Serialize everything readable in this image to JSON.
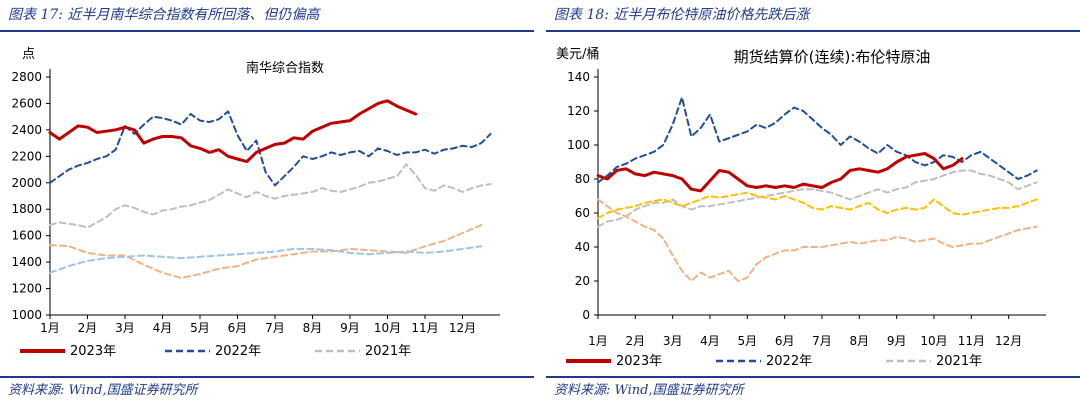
{
  "panels": [
    {
      "title": "图表 17:  近半月南华综合指数有所回落、但仍偏高",
      "source": "资料来源:  Wind,国盛证券研究所"
    },
    {
      "title": "图表 18:  近半月布伦特原油价格先跌后涨",
      "source": "资料来源:  Wind,国盛证券研究所"
    }
  ],
  "colors": {
    "accent": "#1f3a8a"
  },
  "chart_data": [
    {
      "type": "line",
      "title": "南华综合指数",
      "ylabel": "点",
      "xlabel": "",
      "ylim": [
        1000,
        2800
      ],
      "yticks": [
        1000,
        1200,
        1400,
        1600,
        1800,
        2000,
        2200,
        2400,
        2600,
        2800
      ],
      "categories": [
        "1月",
        "2月",
        "3月",
        "4月",
        "5月",
        "6月",
        "7月",
        "8月",
        "9月",
        "10月",
        "11月",
        "12月"
      ],
      "grid": false,
      "legend_position": "bottom",
      "series": [
        {
          "name": "2023年",
          "color": "#c00000",
          "style": "solid",
          "emphasis": true,
          "x": [
            0,
            0.25,
            0.5,
            0.75,
            1,
            1.25,
            1.5,
            1.75,
            2,
            2.25,
            2.5,
            2.75,
            3,
            3.25,
            3.5,
            3.75,
            4,
            4.25,
            4.5,
            4.75,
            5,
            5.25,
            5.5,
            5.75,
            6,
            6.25,
            6.5,
            6.75,
            7,
            7.25,
            7.5,
            7.75,
            8,
            8.25,
            8.5,
            8.75,
            9,
            9.25,
            9.5,
            9.75
          ],
          "values": [
            2380,
            2330,
            2380,
            2430,
            2420,
            2380,
            2390,
            2400,
            2420,
            2400,
            2300,
            2330,
            2350,
            2350,
            2340,
            2280,
            2260,
            2230,
            2250,
            2200,
            2180,
            2160,
            2230,
            2260,
            2290,
            2300,
            2340,
            2330,
            2390,
            2420,
            2450,
            2460,
            2470,
            2520,
            2560,
            2600,
            2620,
            2580,
            2550,
            2520
          ]
        },
        {
          "name": "2022年",
          "color": "#1f4e9c",
          "style": "dashed",
          "x": [
            0,
            0.25,
            0.5,
            0.75,
            1,
            1.25,
            1.5,
            1.75,
            2,
            2.25,
            2.5,
            2.75,
            3,
            3.25,
            3.5,
            3.75,
            4,
            4.25,
            4.5,
            4.75,
            5,
            5.25,
            5.5,
            5.75,
            6,
            6.25,
            6.5,
            6.75,
            7,
            7.25,
            7.5,
            7.75,
            8,
            8.25,
            8.5,
            8.75,
            9,
            9.25,
            9.5,
            9.75,
            10,
            10.25,
            10.5,
            10.75,
            11,
            11.25,
            11.5,
            11.75
          ],
          "values": [
            2000,
            2050,
            2100,
            2130,
            2150,
            2180,
            2200,
            2250,
            2430,
            2370,
            2440,
            2500,
            2490,
            2470,
            2440,
            2520,
            2470,
            2460,
            2480,
            2540,
            2360,
            2240,
            2320,
            2080,
            1980,
            2050,
            2120,
            2200,
            2180,
            2200,
            2230,
            2210,
            2230,
            2240,
            2200,
            2260,
            2240,
            2210,
            2230,
            2230,
            2250,
            2220,
            2250,
            2260,
            2280,
            2270,
            2300,
            2370
          ]
        },
        {
          "name": "2021年",
          "color": "#bfbfbf",
          "style": "dashed",
          "x": [
            0,
            0.25,
            0.5,
            0.75,
            1,
            1.25,
            1.5,
            1.75,
            2,
            2.25,
            2.5,
            2.75,
            3,
            3.25,
            3.5,
            3.75,
            4,
            4.25,
            4.5,
            4.75,
            5,
            5.25,
            5.5,
            5.75,
            6,
            6.25,
            6.5,
            6.75,
            7,
            7.25,
            7.5,
            7.75,
            8,
            8.25,
            8.5,
            8.75,
            9,
            9.25,
            9.5,
            9.75,
            10,
            10.25,
            10.5,
            10.75,
            11,
            11.25,
            11.5,
            11.75
          ],
          "values": [
            1680,
            1700,
            1690,
            1680,
            1660,
            1700,
            1740,
            1800,
            1830,
            1810,
            1780,
            1760,
            1790,
            1800,
            1820,
            1830,
            1850,
            1870,
            1910,
            1950,
            1920,
            1890,
            1930,
            1900,
            1880,
            1900,
            1910,
            1920,
            1930,
            1960,
            1940,
            1930,
            1950,
            1970,
            2000,
            2010,
            2030,
            2050,
            2140,
            2060,
            1960,
            1940,
            1980,
            1960,
            1930,
            1960,
            1980,
            1990
          ]
        },
        {
          "name": "",
          "color": "#f4b183",
          "style": "dashed",
          "x": [
            0,
            0.5,
            1,
            1.5,
            2,
            2.5,
            3,
            3.5,
            4,
            4.5,
            5,
            5.5,
            6,
            6.5,
            7,
            7.5,
            8,
            8.5,
            9,
            9.5,
            10,
            10.5,
            11,
            11.5
          ],
          "values": [
            1530,
            1520,
            1470,
            1450,
            1450,
            1380,
            1320,
            1280,
            1310,
            1350,
            1370,
            1420,
            1440,
            1460,
            1480,
            1480,
            1500,
            1490,
            1480,
            1470,
            1520,
            1560,
            1620,
            1680
          ]
        },
        {
          "name": "",
          "color": "#9dc3e6",
          "style": "dashed",
          "x": [
            0,
            0.5,
            1,
            1.5,
            2,
            2.5,
            3,
            3.5,
            4,
            4.5,
            5,
            5.5,
            6,
            6.5,
            7,
            7.5,
            8,
            8.5,
            9,
            9.5,
            10,
            10.5,
            11,
            11.5
          ],
          "values": [
            1320,
            1370,
            1410,
            1430,
            1440,
            1450,
            1440,
            1430,
            1440,
            1450,
            1460,
            1470,
            1480,
            1500,
            1500,
            1490,
            1470,
            1460,
            1470,
            1480,
            1470,
            1480,
            1500,
            1520
          ]
        }
      ]
    },
    {
      "type": "line",
      "title": "期货结算价(连续):布伦特原油",
      "ylabel": "美元/桶",
      "xlabel": "",
      "ylim": [
        0,
        140
      ],
      "yticks": [
        0,
        20,
        40,
        60,
        80,
        100,
        120,
        140
      ],
      "categories": [
        "1月",
        "2月",
        "3月",
        "4月",
        "5月",
        "6月",
        "7月",
        "8月",
        "9月",
        "10月",
        "11月",
        "12月"
      ],
      "grid": false,
      "legend_position": "bottom",
      "series": [
        {
          "name": "2023年",
          "color": "#c00000",
          "style": "solid",
          "emphasis": true,
          "x": [
            0,
            0.25,
            0.5,
            0.75,
            1,
            1.25,
            1.5,
            1.75,
            2,
            2.25,
            2.5,
            2.75,
            3,
            3.25,
            3.5,
            3.75,
            4,
            4.25,
            4.5,
            4.75,
            5,
            5.25,
            5.5,
            5.75,
            6,
            6.25,
            6.5,
            6.75,
            7,
            7.25,
            7.5,
            7.75,
            8,
            8.25,
            8.5,
            8.75,
            9,
            9.25,
            9.5,
            9.75
          ],
          "values": [
            82,
            80,
            85,
            86,
            83,
            82,
            84,
            83,
            82,
            80,
            74,
            73,
            79,
            85,
            84,
            80,
            76,
            75,
            76,
            75,
            76,
            75,
            77,
            76,
            75,
            78,
            80,
            85,
            86,
            85,
            84,
            86,
            90,
            93,
            94,
            95,
            92,
            86,
            88,
            92
          ]
        },
        {
          "name": "2022年",
          "color": "#1f4e9c",
          "style": "dashed",
          "x": [
            0,
            0.25,
            0.5,
            0.75,
            1,
            1.25,
            1.5,
            1.75,
            2,
            2.25,
            2.5,
            2.75,
            3,
            3.25,
            3.5,
            3.75,
            4,
            4.25,
            4.5,
            4.75,
            5,
            5.25,
            5.5,
            5.75,
            6,
            6.25,
            6.5,
            6.75,
            7,
            7.25,
            7.5,
            7.75,
            8,
            8.25,
            8.5,
            8.75,
            9,
            9.25,
            9.5,
            9.75,
            10,
            10.25,
            10.5,
            10.75,
            11,
            11.25,
            11.5,
            11.75
          ],
          "values": [
            78,
            82,
            87,
            89,
            92,
            94,
            96,
            100,
            112,
            128,
            105,
            110,
            118,
            102,
            104,
            106,
            108,
            112,
            110,
            113,
            118,
            122,
            120,
            115,
            110,
            106,
            100,
            105,
            102,
            98,
            95,
            100,
            96,
            94,
            90,
            88,
            90,
            94,
            93,
            90,
            94,
            96,
            92,
            88,
            84,
            80,
            82,
            85
          ]
        },
        {
          "name": "2021年",
          "color": "#bfbfbf",
          "style": "dashed",
          "x": [
            0,
            0.25,
            0.5,
            0.75,
            1,
            1.25,
            1.5,
            1.75,
            2,
            2.25,
            2.5,
            2.75,
            3,
            3.25,
            3.5,
            3.75,
            4,
            4.25,
            4.5,
            4.75,
            5,
            5.25,
            5.5,
            5.75,
            6,
            6.25,
            6.5,
            6.75,
            7,
            7.25,
            7.5,
            7.75,
            8,
            8.25,
            8.5,
            8.75,
            9,
            9.25,
            9.5,
            9.75,
            10,
            10.25,
            10.5,
            10.75,
            11,
            11.25,
            11.5,
            11.75
          ],
          "values": [
            52,
            55,
            56,
            58,
            62,
            64,
            66,
            66,
            68,
            64,
            62,
            64,
            64,
            65,
            66,
            67,
            68,
            69,
            70,
            71,
            72,
            73,
            74,
            74,
            73,
            72,
            70,
            68,
            70,
            72,
            74,
            72,
            74,
            75,
            78,
            79,
            80,
            82,
            84,
            85,
            85,
            83,
            82,
            80,
            78,
            74,
            76,
            78
          ]
        },
        {
          "name": "",
          "color": "#ffc000",
          "style": "dashed",
          "x": [
            0,
            0.25,
            0.5,
            0.75,
            1,
            1.25,
            1.5,
            1.75,
            2,
            2.25,
            2.5,
            2.75,
            3,
            3.25,
            3.5,
            3.75,
            4,
            4.25,
            4.5,
            4.75,
            5,
            5.25,
            5.5,
            5.75,
            6,
            6.25,
            6.5,
            6.75,
            7,
            7.25,
            7.5,
            7.75,
            8,
            8.25,
            8.5,
            8.75,
            9,
            9.25,
            9.5,
            9.75,
            10,
            10.25,
            10.5,
            10.75,
            11,
            11.25,
            11.5,
            11.75
          ],
          "values": [
            57,
            60,
            62,
            63,
            64,
            66,
            67,
            68,
            66,
            64,
            66,
            68,
            70,
            69,
            70,
            71,
            72,
            70,
            69,
            68,
            70,
            68,
            66,
            63,
            62,
            64,
            63,
            62,
            64,
            66,
            62,
            60,
            62,
            63,
            62,
            63,
            68,
            64,
            60,
            59,
            60,
            61,
            62,
            63,
            63,
            64,
            66,
            68
          ]
        },
        {
          "name": "",
          "color": "#f4b183",
          "style": "dashed",
          "x": [
            0,
            0.25,
            0.5,
            0.75,
            1,
            1.25,
            1.5,
            1.75,
            2,
            2.25,
            2.5,
            2.75,
            3,
            3.25,
            3.5,
            3.75,
            4,
            4.25,
            4.5,
            4.75,
            5,
            5.25,
            5.5,
            5.75,
            6,
            6.25,
            6.5,
            6.75,
            7,
            7.25,
            7.5,
            7.75,
            8,
            8.25,
            8.5,
            8.75,
            9,
            9.25,
            9.5,
            9.75,
            10,
            10.25,
            10.5,
            10.75,
            11,
            11.25,
            11.5,
            11.75
          ],
          "values": [
            68,
            64,
            60,
            58,
            55,
            52,
            50,
            45,
            35,
            26,
            20,
            25,
            22,
            24,
            26,
            20,
            22,
            30,
            34,
            36,
            38,
            38,
            40,
            40,
            40,
            41,
            42,
            43,
            42,
            43,
            44,
            44,
            46,
            45,
            43,
            44,
            45,
            42,
            40,
            41,
            42,
            42,
            44,
            46,
            48,
            50,
            51,
            52
          ]
        }
      ]
    }
  ]
}
